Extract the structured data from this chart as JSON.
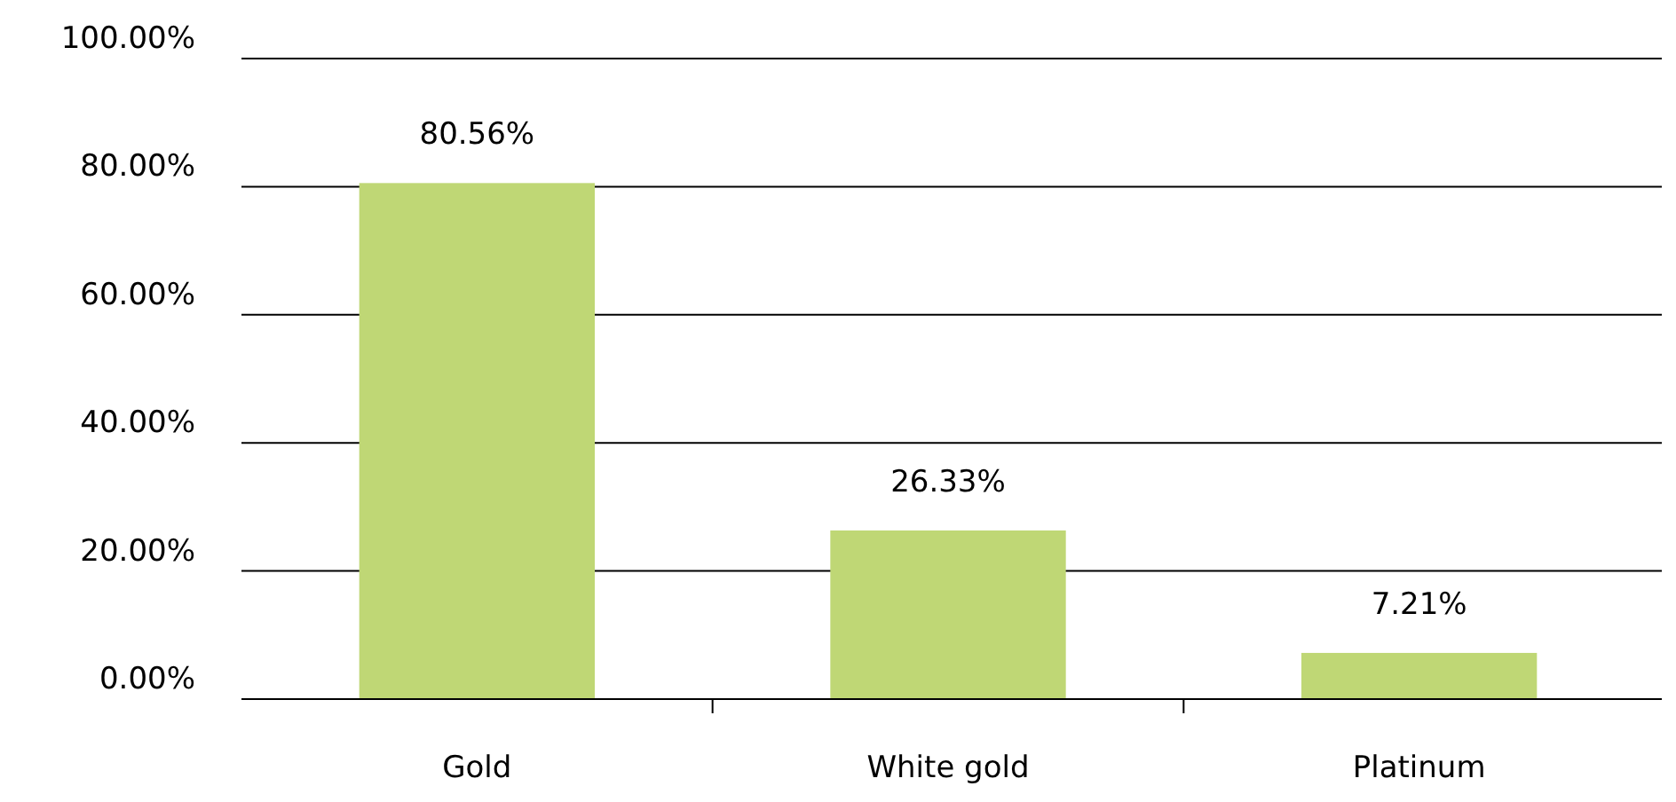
{
  "chart_data": {
    "type": "bar",
    "categories": [
      "Gold",
      "White gold",
      "Platinum"
    ],
    "values": [
      80.56,
      26.33,
      7.21
    ],
    "color": "#bfd775",
    "value_labels": [
      "80.56%",
      "26.33%",
      "7.21%"
    ],
    "ylim": [
      0,
      100
    ],
    "yticks": [
      {
        "value": 0,
        "label": "0.00%"
      },
      {
        "value": 20,
        "label": "20.00%"
      },
      {
        "value": 40,
        "label": "40.00%"
      },
      {
        "value": 60,
        "label": "60.00%"
      },
      {
        "value": 80,
        "label": "80.00%"
      },
      {
        "value": 100,
        "label": "100.00%"
      }
    ],
    "grid": "y"
  }
}
